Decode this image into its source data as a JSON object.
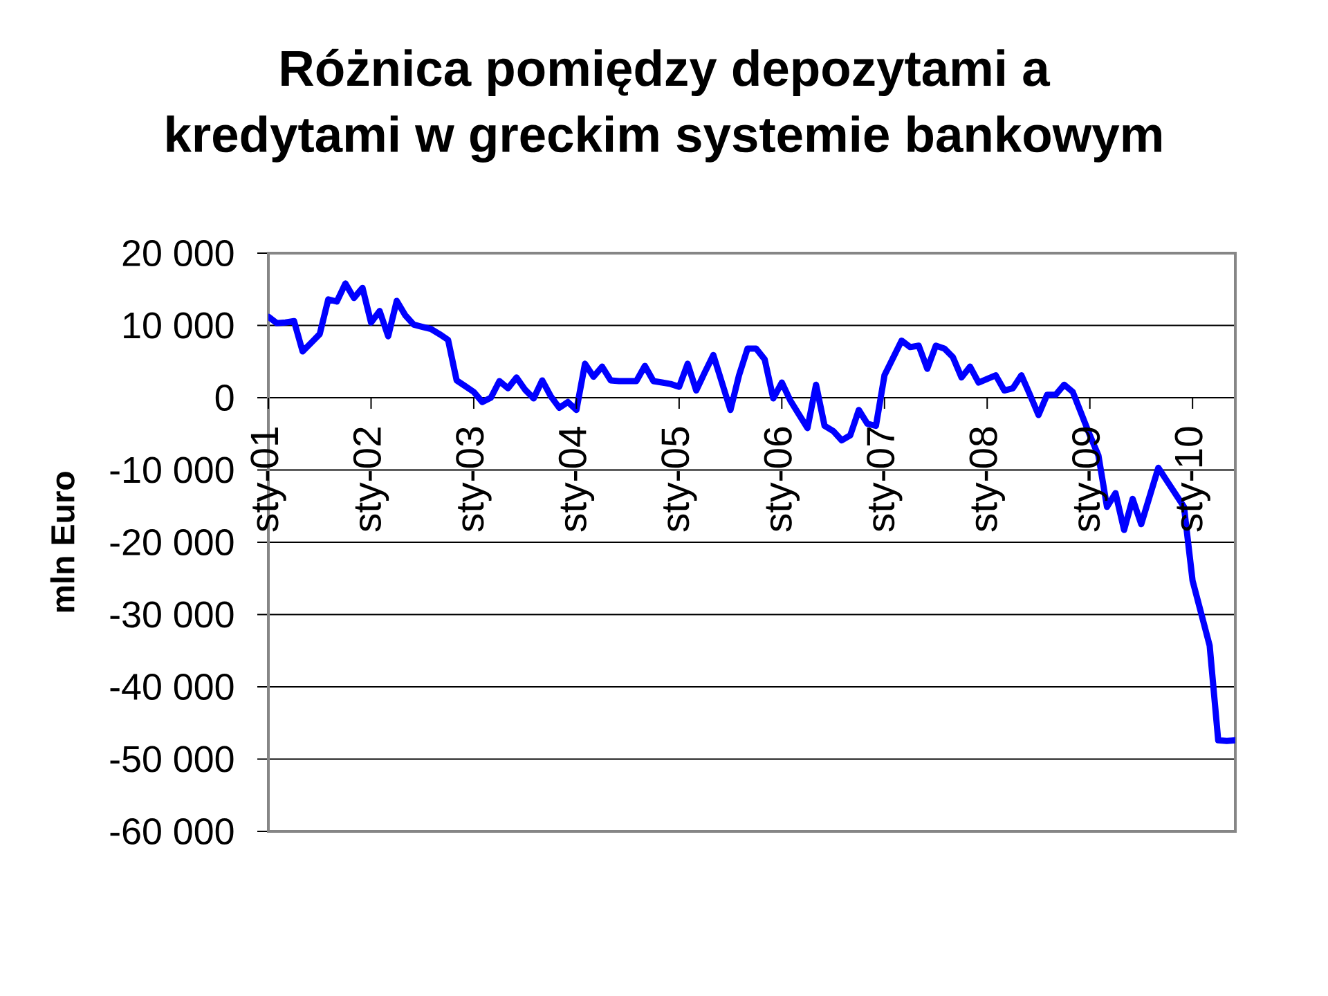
{
  "chart_data": {
    "type": "line",
    "title": "Różnica pomiędzy depozytami a kredytami w greckim systemie bankowym",
    "ylabel": "mln Euro",
    "x": [
      "2001-01",
      "2001-02",
      "2001-03",
      "2001-04",
      "2001-05",
      "2001-06",
      "2001-07",
      "2001-08",
      "2001-09",
      "2001-10",
      "2001-11",
      "2001-12",
      "2002-01",
      "2002-02",
      "2002-03",
      "2002-04",
      "2002-05",
      "2002-06",
      "2002-07",
      "2002-08",
      "2002-09",
      "2002-10",
      "2002-11",
      "2002-12",
      "2003-01",
      "2003-02",
      "2003-03",
      "2003-04",
      "2003-05",
      "2003-06",
      "2003-07",
      "2003-08",
      "2003-09",
      "2003-10",
      "2003-11",
      "2003-12",
      "2004-01",
      "2004-02",
      "2004-03",
      "2004-04",
      "2004-05",
      "2004-06",
      "2004-07",
      "2004-08",
      "2004-09",
      "2004-10",
      "2004-11",
      "2004-12",
      "2005-01",
      "2005-02",
      "2005-03",
      "2005-04",
      "2005-05",
      "2005-06",
      "2005-07",
      "2005-08",
      "2005-09",
      "2005-10",
      "2005-11",
      "2005-12",
      "2006-01",
      "2006-02",
      "2006-03",
      "2006-04",
      "2006-05",
      "2006-06",
      "2006-07",
      "2006-08",
      "2006-09",
      "2006-10",
      "2006-11",
      "2006-12",
      "2007-01",
      "2007-02",
      "2007-03",
      "2007-04",
      "2007-05",
      "2007-06",
      "2007-07",
      "2007-08",
      "2007-09",
      "2007-10",
      "2007-11",
      "2007-12",
      "2008-01",
      "2008-02",
      "2008-03",
      "2008-04",
      "2008-05",
      "2008-06",
      "2008-07",
      "2008-08",
      "2008-09",
      "2008-10",
      "2008-11",
      "2008-12",
      "2009-01",
      "2009-02",
      "2009-03",
      "2009-04",
      "2009-05",
      "2009-06",
      "2009-07",
      "2009-08",
      "2009-09",
      "2009-10",
      "2009-11",
      "2009-12",
      "2010-01",
      "2010-02",
      "2010-03",
      "2010-04",
      "2010-05",
      "2010-06"
    ],
    "values": [
      11200,
      10300,
      10400,
      10600,
      6400,
      7600,
      8800,
      13600,
      13300,
      15800,
      13800,
      15200,
      10400,
      12000,
      8500,
      13400,
      11400,
      10100,
      9800,
      9500,
      8800,
      8000,
      2400,
      1600,
      800,
      -600,
      0,
      2300,
      1300,
      2800,
      1100,
      -100,
      2400,
      200,
      -1400,
      -600,
      -1700,
      4700,
      2900,
      4300,
      2400,
      2300,
      2300,
      2300,
      4400,
      2300,
      2100,
      1900,
      1500,
      4700,
      1000,
      3500,
      5900,
      2100,
      -1700,
      3100,
      6800,
      6800,
      5300,
      -100,
      2100,
      -400,
      -2300,
      -4200,
      1800,
      -3900,
      -4600,
      -5900,
      -5200,
      -1700,
      -3600,
      -3900,
      3100,
      5500,
      7900,
      7000,
      7200,
      4000,
      7200,
      6800,
      5600,
      2800,
      4300,
      2100,
      2600,
      3100,
      1000,
      1300,
      3100,
      400,
      -2400,
      400,
      400,
      1800,
      800,
      -2200,
      -5200,
      -8000,
      -15100,
      -13200,
      -18300,
      -14000,
      -17500,
      -13600,
      -9700,
      -11500,
      -13300,
      -15100,
      -25300,
      -29800,
      -34300,
      -47400,
      -47500,
      -47400
    ],
    "color": "#0000ff",
    "line_style": "solid",
    "xlim": [
      "2001-01",
      "2010-06"
    ],
    "xticks": [
      {
        "value": "2001-01",
        "label": "sty-01"
      },
      {
        "value": "2002-01",
        "label": "sty-02"
      },
      {
        "value": "2003-01",
        "label": "sty-03"
      },
      {
        "value": "2004-01",
        "label": "sty-04"
      },
      {
        "value": "2005-01",
        "label": "sty-05"
      },
      {
        "value": "2006-01",
        "label": "sty-06"
      },
      {
        "value": "2007-01",
        "label": "sty-07"
      },
      {
        "value": "2008-01",
        "label": "sty-08"
      },
      {
        "value": "2009-01",
        "label": "sty-09"
      },
      {
        "value": "2010-01",
        "label": "sty-10"
      }
    ],
    "ylim": [
      -60000,
      20000
    ],
    "yticks": [
      {
        "value": -60000,
        "label": "-60 000"
      },
      {
        "value": -50000,
        "label": "-50 000"
      },
      {
        "value": -40000,
        "label": "-40 000"
      },
      {
        "value": -30000,
        "label": "-30 000"
      },
      {
        "value": -20000,
        "label": "-20 000"
      },
      {
        "value": -10000,
        "label": "-10 000"
      },
      0,
      {
        "value": 10000,
        "label": "10 000"
      },
      {
        "value": 20000,
        "label": "20 000"
      }
    ],
    "grid": "y"
  }
}
